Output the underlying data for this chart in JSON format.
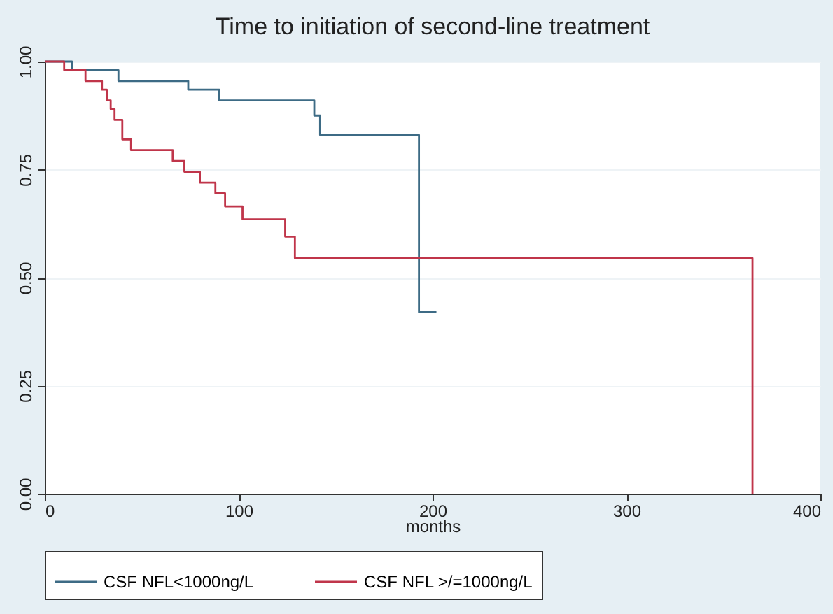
{
  "chart_data": {
    "type": "step",
    "title": "Time to initiation of second-line treatment",
    "xlabel": "months",
    "xlim": [
      0,
      400
    ],
    "xticks": [
      0,
      100,
      200,
      300,
      400
    ],
    "ylim": [
      0,
      1
    ],
    "yticks": [
      {
        "value": 0,
        "label": "0.00"
      },
      {
        "value": 0.25,
        "label": "0.25"
      },
      {
        "value": 0.5,
        "label": "0.50"
      },
      {
        "value": 0.75,
        "label": "0.75"
      },
      {
        "value": 1,
        "label": "1.00"
      }
    ],
    "grid": "y",
    "legend": "bottom",
    "line_style": "solid",
    "marker": "none",
    "series": [
      {
        "name": "CSF NFL<1000ng/L",
        "color": "#3d6b85",
        "x": [
          0,
          14,
          38,
          74,
          90,
          139,
          142,
          193,
          202
        ],
        "values": [
          1,
          0.98,
          0.955,
          0.935,
          0.91,
          0.875,
          0.83,
          0.42,
          0.42
        ]
      },
      {
        "name": "CSF NFL >/=1000ng/L",
        "color": "#c0354a",
        "x": [
          0,
          10,
          21,
          29.5,
          32,
          34,
          36,
          40,
          44.5,
          66,
          72,
          80,
          88,
          93,
          102,
          124,
          129,
          365
        ],
        "values": [
          1,
          0.98,
          0.955,
          0.935,
          0.91,
          0.89,
          0.865,
          0.82,
          0.795,
          0.77,
          0.745,
          0.72,
          0.695,
          0.665,
          0.635,
          0.595,
          0.545,
          0
        ]
      }
    ]
  }
}
